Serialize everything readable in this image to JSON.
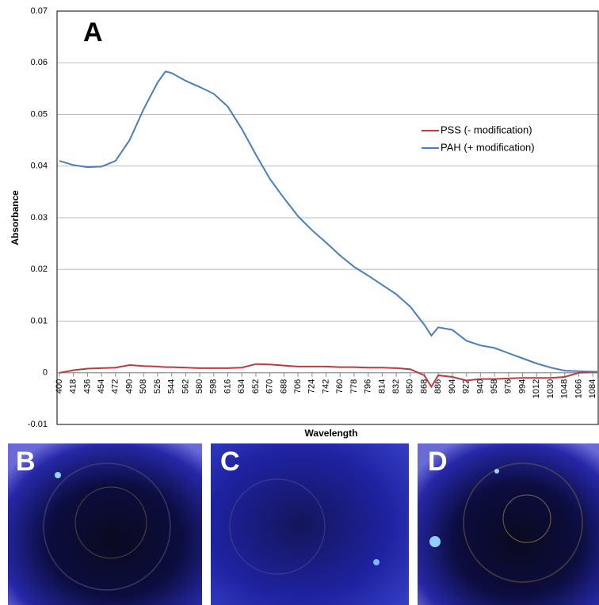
{
  "chart_data": {
    "type": "line",
    "panel_label": "A",
    "xlabel": "Wavelength",
    "ylabel": "Absorbance",
    "x": [
      400,
      418,
      436,
      454,
      472,
      490,
      508,
      526,
      536,
      544,
      562,
      580,
      598,
      616,
      634,
      652,
      670,
      688,
      706,
      724,
      742,
      760,
      778,
      796,
      814,
      832,
      850,
      868,
      877,
      886,
      904,
      922,
      940,
      958,
      976,
      994,
      1012,
      1030,
      1048,
      1066,
      1084,
      1090
    ],
    "series": [
      {
        "name": "PSS (- modification)",
        "color": "#c0393b",
        "values": [
          0,
          0.0005,
          0.0008,
          0.0009,
          0.001,
          0.0015,
          0.0013,
          0.0012,
          0.0011,
          0.0011,
          0.001,
          0.0009,
          0.0009,
          0.0009,
          0.001,
          0.0017,
          0.0016,
          0.0014,
          0.0012,
          0.0012,
          0.0012,
          0.0011,
          0.0011,
          0.001,
          0.001,
          0.0009,
          0.0007,
          -0.0005,
          -0.0027,
          -0.0005,
          -0.0008,
          -0.0015,
          -0.0012,
          -0.0012,
          -0.0011,
          -0.001,
          -0.001,
          -0.001,
          -0.0008,
          0,
          0.0001,
          0.0001
        ]
      },
      {
        "name": "PAH (+ modification)",
        "color": "#4a7ebb",
        "values": [
          0.041,
          0.0402,
          0.0398,
          0.0399,
          0.041,
          0.045,
          0.051,
          0.0562,
          0.0583,
          0.058,
          0.0565,
          0.0553,
          0.054,
          0.0515,
          0.0472,
          0.0422,
          0.0375,
          0.0338,
          0.0303,
          0.0276,
          0.0252,
          0.0227,
          0.0205,
          0.0188,
          0.017,
          0.0152,
          0.0128,
          0.0093,
          0.0072,
          0.0088,
          0.0083,
          0.0062,
          0.0053,
          0.0048,
          0.0038,
          0.0028,
          0.0018,
          0.001,
          0.0004,
          0.0003,
          0.0002,
          0.0002
        ]
      }
    ],
    "xlim": [
      397,
      1091
    ],
    "xticks": [
      400,
      418,
      436,
      454,
      472,
      490,
      508,
      526,
      544,
      562,
      580,
      598,
      616,
      634,
      652,
      670,
      688,
      706,
      724,
      742,
      760,
      778,
      796,
      814,
      832,
      850,
      868,
      886,
      904,
      922,
      940,
      958,
      976,
      994,
      1012,
      1030,
      1048,
      1066,
      1084
    ],
    "ylim": [
      -0.01,
      0.07
    ],
    "yticks": [
      -0.01,
      0,
      0.01,
      0.02,
      0.03,
      0.04,
      0.05,
      0.06,
      0.07
    ],
    "grid": true
  },
  "images": [
    {
      "label": "B"
    },
    {
      "label": "C"
    },
    {
      "label": "D"
    }
  ]
}
